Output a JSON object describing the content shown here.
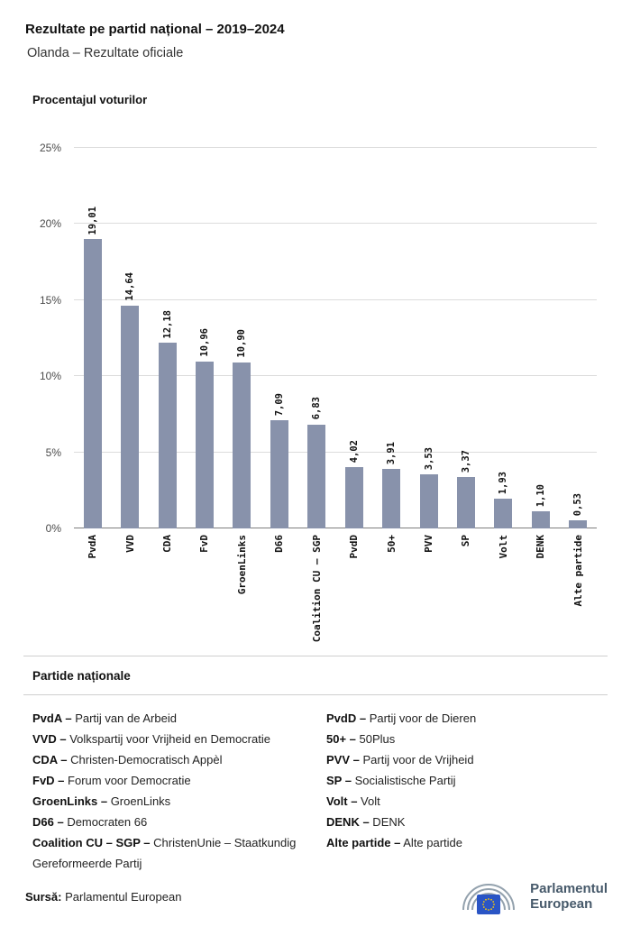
{
  "header": {
    "title": "Rezultate pe partid național – 2019–2024",
    "subtitle": "Olanda – Rezultate oficiale"
  },
  "chart": {
    "title": "Procentajul voturilor",
    "bar_color": "#8892ab",
    "y_ticks": [
      "0%",
      "5%",
      "10%",
      "15%",
      "20%",
      "25%"
    ]
  },
  "chart_data": {
    "type": "bar",
    "title": "Procentajul voturilor",
    "categories": [
      "PvdA",
      "VVD",
      "CDA",
      "FvD",
      "GroenLinks",
      "D66",
      "Coalition CU – SGP",
      "PvdD",
      "50+",
      "PVV",
      "SP",
      "Volt",
      "DENK",
      "Alte partide"
    ],
    "values": [
      19.01,
      14.64,
      12.18,
      10.96,
      10.9,
      7.09,
      6.83,
      4.02,
      3.91,
      3.53,
      3.37,
      1.93,
      1.1,
      0.53
    ],
    "value_labels": [
      "19,01",
      "14,64",
      "12,18",
      "10,96",
      "10,90",
      "7,09",
      "6,83",
      "4,02",
      "3,91",
      "3,53",
      "3,37",
      "1,93",
      "1,10",
      "0,53"
    ],
    "xlabel": "",
    "ylabel": "Procentajul voturilor",
    "ylim": [
      0,
      25
    ],
    "y_tick_step": 5,
    "grid": true,
    "legend_position": "none"
  },
  "legend": {
    "heading": "Partide naționale",
    "columns": [
      [
        {
          "abbr": "PvdA –",
          "name": "Partij van de Arbeid"
        },
        {
          "abbr": "VVD –",
          "name": "Volkspartij voor Vrijheid en Democratie"
        },
        {
          "abbr": "CDA –",
          "name": "Christen-Democratisch Appèl"
        },
        {
          "abbr": "FvD –",
          "name": "Forum voor Democratie"
        },
        {
          "abbr": "GroenLinks –",
          "name": "GroenLinks"
        },
        {
          "abbr": "D66 –",
          "name": "Democraten 66"
        },
        {
          "abbr": "Coalition CU – SGP –",
          "name": "ChristenUnie – Staatkundig Gereformeerde Partij"
        }
      ],
      [
        {
          "abbr": "PvdD –",
          "name": "Partij voor de Dieren"
        },
        {
          "abbr": "50+ –",
          "name": "50Plus"
        },
        {
          "abbr": "PVV –",
          "name": "Partij voor de Vrijheid"
        },
        {
          "abbr": "SP –",
          "name": "Socialistische Partij"
        },
        {
          "abbr": "Volt –",
          "name": "Volt"
        },
        {
          "abbr": "DENK –",
          "name": "DENK"
        },
        {
          "abbr": "Alte partide –",
          "name": "Alte partide"
        }
      ]
    ]
  },
  "footer": {
    "source_label": "Sursă:",
    "source_text": "Parlamentul European",
    "logo_text_line1": "Parlamentul",
    "logo_text_line2": "European"
  }
}
